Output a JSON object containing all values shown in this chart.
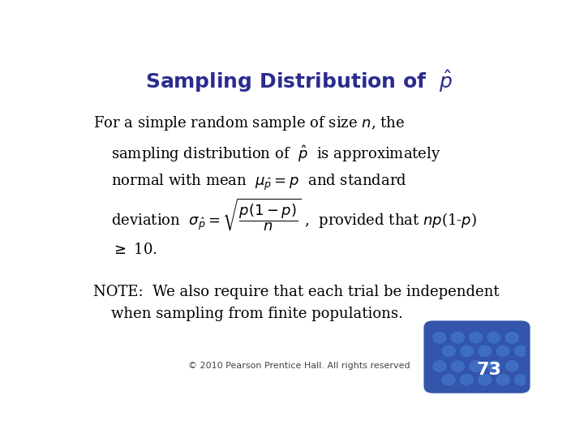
{
  "title_color": "#2B2B8F",
  "bg_color": "#FFFFFF",
  "black": "#000000",
  "title_fontsize": 18,
  "body_fontsize": 13,
  "note_fontsize": 13,
  "footer_fontsize": 8,
  "page_num": "73",
  "footer_text": "© 2010 Pearson Prentice Hall. All rights reserved",
  "badge_bg": "#3355AA",
  "bubble_dark": "#2244AA",
  "bubble_light": "#4477CC"
}
